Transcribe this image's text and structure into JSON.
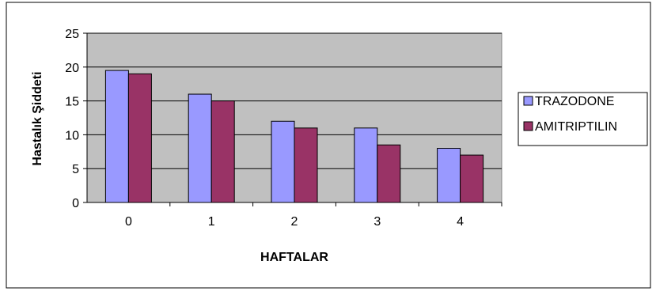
{
  "chart_data": {
    "type": "bar",
    "categories": [
      "0",
      "1",
      "2",
      "3",
      "4"
    ],
    "series": [
      {
        "name": "TRAZODONE",
        "values": [
          19.5,
          16,
          12,
          11,
          8
        ],
        "color": "#9999ff"
      },
      {
        "name": "AMITRIPTILIN",
        "values": [
          19,
          15,
          11,
          8.5,
          7
        ],
        "color": "#993366"
      }
    ],
    "xlabel": "HAFTALAR",
    "ylabel": "Hastalık Şiddeti",
    "ylim": [
      0,
      25
    ],
    "yticks": [
      "0",
      "5",
      "10",
      "15",
      "20",
      "25"
    ],
    "grid": true,
    "legend": "right",
    "plot_background": "#c0c0c0"
  }
}
